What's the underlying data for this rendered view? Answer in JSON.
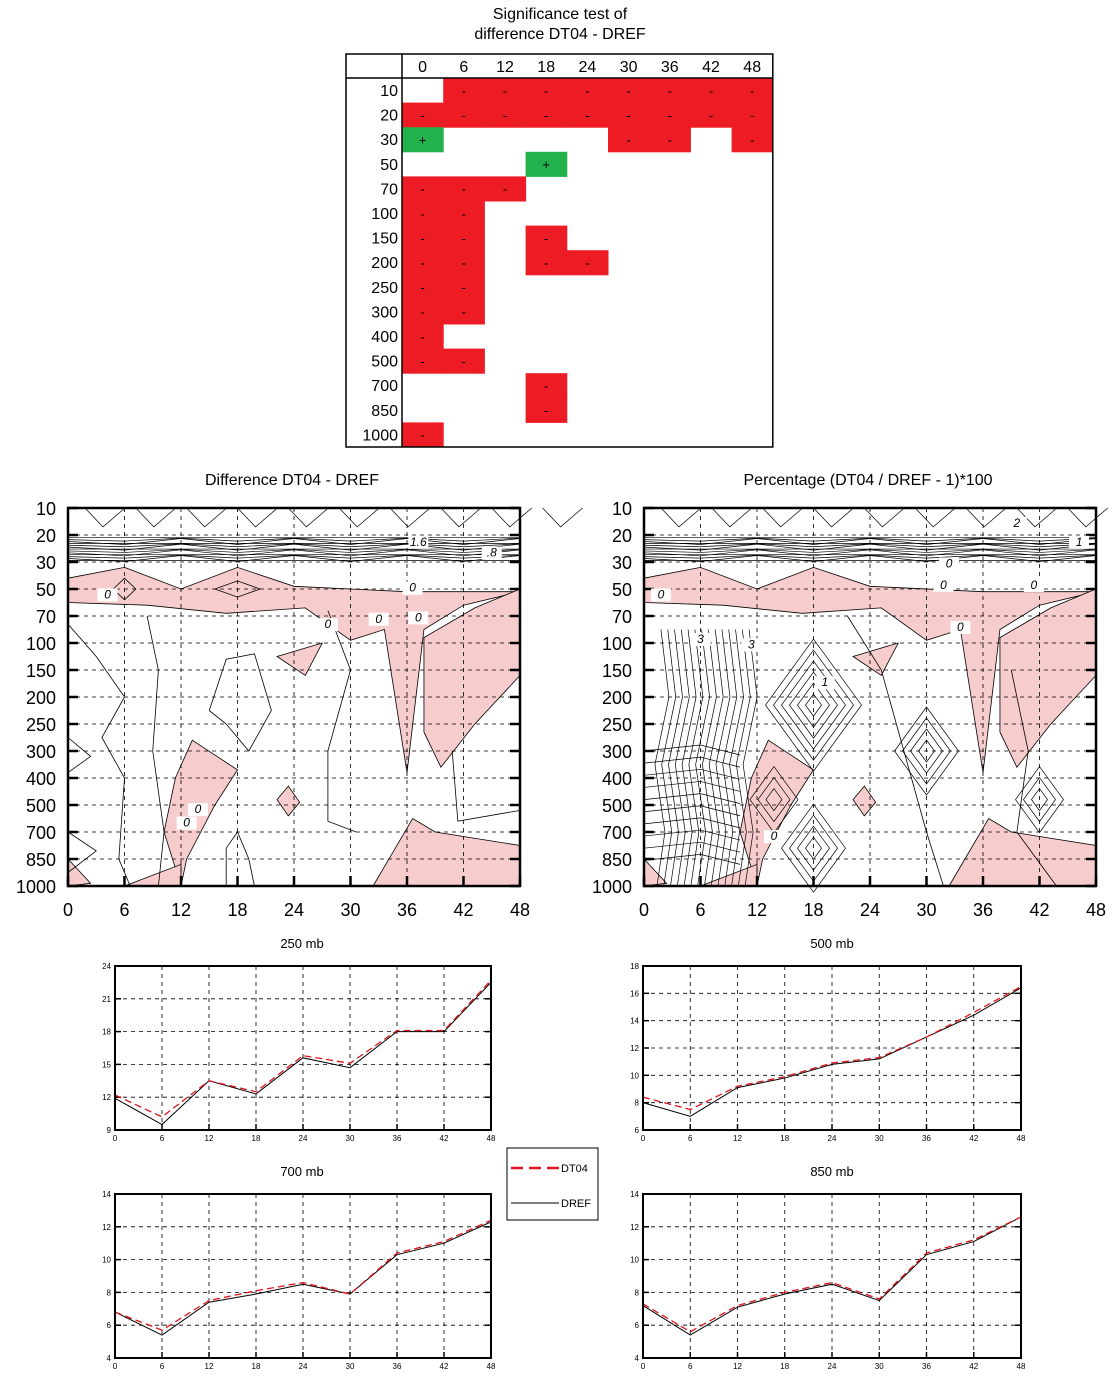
{
  "colors": {
    "significant_negative": "#ed1c24",
    "significant_positive": "#22b14c",
    "negative_shade": "#f7cccc",
    "dt04_line": "#e0141c",
    "dref_line": "#000000"
  },
  "significance": {
    "title_line1": "Significance test of",
    "title_line2": "difference DT04 - DREF",
    "columns": [
      "0",
      "6",
      "12",
      "18",
      "24",
      "30",
      "36",
      "42",
      "48"
    ],
    "rows": [
      "10",
      "20",
      "30",
      "50",
      "70",
      "100",
      "150",
      "200",
      "250",
      "300",
      "400",
      "500",
      "700",
      "850",
      "1000"
    ],
    "cells": [
      [
        "",
        "-",
        "-",
        "-",
        "-",
        "-",
        "-",
        "-",
        "-"
      ],
      [
        "-",
        "-",
        "-",
        "-",
        "-",
        "-",
        "-",
        "-",
        "-"
      ],
      [
        "+",
        "",
        "",
        "",
        "",
        "-",
        "-",
        "",
        "-"
      ],
      [
        "",
        "",
        "",
        "+",
        "",
        "",
        "",
        "",
        ""
      ],
      [
        "-",
        "-",
        "-",
        "",
        "",
        "",
        "",
        "",
        ""
      ],
      [
        "-",
        "-",
        "",
        "",
        "",
        "",
        "",
        "",
        ""
      ],
      [
        "-",
        "-",
        "",
        "-",
        "",
        "",
        "",
        "",
        ""
      ],
      [
        "-",
        "-",
        "",
        "-",
        "-",
        "",
        "",
        "",
        ""
      ],
      [
        "-",
        "-",
        "",
        "",
        "",
        "",
        "",
        "",
        ""
      ],
      [
        "-",
        "-",
        "",
        "",
        "",
        "",
        "",
        "",
        ""
      ],
      [
        "-",
        "",
        "",
        "",
        "",
        "",
        "",
        "",
        ""
      ],
      [
        "-",
        "-",
        "",
        "",
        "",
        "",
        "",
        "",
        ""
      ],
      [
        "",
        "",
        "",
        "-",
        "",
        "",
        "",
        "",
        ""
      ],
      [
        "",
        "",
        "",
        "-",
        "",
        "",
        "",
        "",
        ""
      ],
      [
        "-",
        "",
        "",
        "",
        "",
        "",
        "",
        "",
        ""
      ]
    ]
  },
  "chart_data": [
    {
      "type": "heatmap",
      "title": "Difference DT04 - DREF",
      "x_ticks": [
        "0",
        "6",
        "12",
        "18",
        "24",
        "30",
        "36",
        "42",
        "48"
      ],
      "y_ticks": [
        "10",
        "20",
        "30",
        "50",
        "70",
        "100",
        "150",
        "200",
        "250",
        "300",
        "400",
        "500",
        "700",
        "850",
        "1000"
      ],
      "contour_labels": [
        "1.6",
        ".8",
        "0",
        "0",
        "0",
        "0",
        "0",
        "0",
        "0"
      ],
      "grid": true
    },
    {
      "type": "heatmap",
      "title": "Percentage (DT04 / DREF - 1)*100",
      "x_ticks": [
        "0",
        "6",
        "12",
        "18",
        "24",
        "30",
        "36",
        "42",
        "48"
      ],
      "y_ticks": [
        "10",
        "20",
        "30",
        "50",
        "70",
        "100",
        "150",
        "200",
        "250",
        "300",
        "400",
        "500",
        "700",
        "850",
        "1000"
      ],
      "contour_labels": [
        "3",
        "2",
        "1",
        "0",
        "0",
        "0",
        "0",
        "0",
        "3",
        "1",
        "0"
      ],
      "grid": true
    },
    {
      "type": "line",
      "title": "250 mb",
      "x": [
        0,
        6,
        12,
        18,
        24,
        30,
        36,
        42,
        48
      ],
      "ylim": [
        9,
        24
      ],
      "y_ticks": [
        9,
        12,
        15,
        18,
        21,
        24
      ],
      "series": [
        {
          "name": "DT04",
          "values": [
            12.2,
            10.2,
            13.5,
            12.5,
            15.8,
            15.1,
            18.1,
            18.1,
            22.7
          ]
        },
        {
          "name": "DREF",
          "values": [
            11.9,
            9.5,
            13.5,
            12.3,
            15.6,
            14.7,
            18.0,
            18.0,
            22.5
          ]
        }
      ]
    },
    {
      "type": "line",
      "title": "500 mb",
      "x": [
        0,
        6,
        12,
        18,
        24,
        30,
        36,
        42,
        48
      ],
      "ylim": [
        6,
        18
      ],
      "y_ticks": [
        6,
        8,
        10,
        12,
        14,
        16,
        18
      ],
      "series": [
        {
          "name": "DT04",
          "values": [
            8.4,
            7.5,
            9.2,
            9.9,
            10.9,
            11.3,
            12.8,
            14.6,
            16.5
          ]
        },
        {
          "name": "DREF",
          "values": [
            8.0,
            7.0,
            9.1,
            9.8,
            10.8,
            11.2,
            12.8,
            14.4,
            16.4
          ]
        }
      ]
    },
    {
      "type": "line",
      "title": "700 mb",
      "x": [
        0,
        6,
        12,
        18,
        24,
        30,
        36,
        42,
        48
      ],
      "ylim": [
        4,
        14
      ],
      "y_ticks": [
        4,
        6,
        8,
        10,
        12,
        14
      ],
      "series": [
        {
          "name": "DT04",
          "values": [
            6.8,
            5.7,
            7.5,
            8.1,
            8.6,
            7.9,
            10.4,
            11.1,
            12.4
          ]
        },
        {
          "name": "DREF",
          "values": [
            6.8,
            5.4,
            7.4,
            7.9,
            8.5,
            7.9,
            10.3,
            11.0,
            12.3
          ]
        }
      ]
    },
    {
      "type": "line",
      "title": "850 mb",
      "x": [
        0,
        6,
        12,
        18,
        24,
        30,
        36,
        42,
        48
      ],
      "ylim": [
        4,
        14
      ],
      "y_ticks": [
        4,
        6,
        8,
        10,
        12,
        14
      ],
      "series": [
        {
          "name": "DT04",
          "values": [
            7.3,
            5.6,
            7.2,
            8.0,
            8.6,
            7.6,
            10.4,
            11.2,
            12.6
          ]
        },
        {
          "name": "DREF",
          "values": [
            7.2,
            5.4,
            7.1,
            7.9,
            8.5,
            7.5,
            10.3,
            11.1,
            12.6
          ]
        }
      ]
    }
  ],
  "legend": {
    "items": [
      {
        "label": "DT04"
      },
      {
        "label": "DREF"
      }
    ]
  }
}
